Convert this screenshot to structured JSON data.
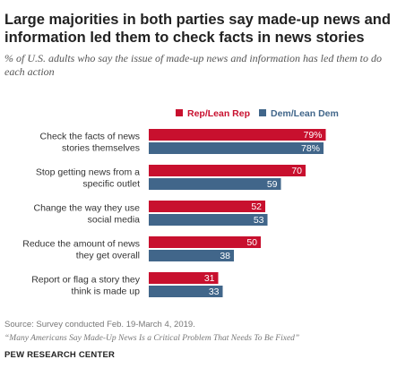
{
  "title": "Large majorities in both parties say made-up news and information led them to check facts in news stories",
  "subtitle": "% of U.S. adults who say the issue of made-up news and information has led them to do each action",
  "chart_data": {
    "type": "bar",
    "orientation": "horizontal",
    "categories": [
      [
        "Check the facts of news",
        "stories themselves"
      ],
      [
        "Stop getting news from a",
        "specific outlet"
      ],
      [
        "Change the way they use",
        "social media"
      ],
      [
        "Reduce the amount of news",
        "they get overall"
      ],
      [
        "Report or flag a story they",
        "think is made up"
      ]
    ],
    "series": [
      {
        "name": "Rep/Lean Rep",
        "color": "#c8102e",
        "values": [
          79,
          70,
          52,
          50,
          31
        ],
        "labels": [
          "79%",
          "70",
          "52",
          "50",
          "31"
        ]
      },
      {
        "name": "Dem/Lean Dem",
        "color": "#41668a",
        "values": [
          78,
          59,
          53,
          38,
          33
        ],
        "labels": [
          "78%",
          "59",
          "53",
          "38",
          "33"
        ]
      }
    ],
    "xlim": [
      0,
      100
    ],
    "grid": false,
    "legend": "top"
  },
  "footer": {
    "source": "Source: Survey conducted Feb. 19-March 4, 2019.",
    "report": "“Many Americans Say Made-Up News Is a Critical Problem That Needs To Be Fixed”",
    "org": "PEW RESEARCH CENTER"
  }
}
